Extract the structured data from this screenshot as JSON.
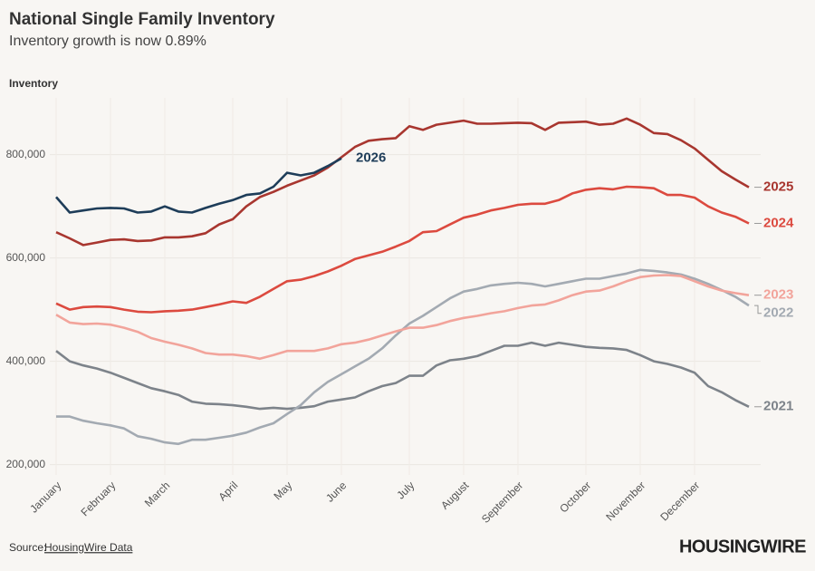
{
  "chart_data": {
    "type": "line",
    "title": "National Single Family Inventory",
    "subtitle": "Inventory growth is now 0.89%",
    "y_label": "Inventory",
    "source": "Source:",
    "source_link": "HousingWire Data",
    "brand": "HOUSINGWIRE",
    "grid": true,
    "categories": [
      "January",
      null,
      null,
      null,
      "February",
      null,
      null,
      null,
      "March",
      null,
      null,
      null,
      null,
      "April",
      null,
      null,
      null,
      "May",
      null,
      null,
      null,
      "June",
      null,
      null,
      null,
      null,
      "July",
      null,
      null,
      null,
      "August",
      null,
      null,
      null,
      "September",
      null,
      null,
      null,
      null,
      "October",
      null,
      null,
      null,
      "November",
      null,
      null,
      null,
      "December",
      null,
      null,
      null,
      null
    ],
    "ylim": [
      180000,
      910000
    ],
    "yticks": [
      {
        "value": 200000,
        "label": "200,000"
      },
      {
        "value": 400000,
        "label": "400,000"
      },
      {
        "value": 600000,
        "label": "600,000"
      },
      {
        "value": 800000,
        "label": "800,000"
      }
    ],
    "series": [
      {
        "name": "2021",
        "color": "#7d838a",
        "values": [
          420000,
          400000,
          392000,
          386000,
          378000,
          368000,
          358000,
          348000,
          342000,
          335000,
          322000,
          318000,
          317000,
          315000,
          312000,
          308000,
          310000,
          308000,
          310000,
          313000,
          322000,
          326000,
          330000,
          342000,
          352000,
          358000,
          372000,
          372000,
          392000,
          402000,
          405000,
          410000,
          420000,
          430000,
          430000,
          436000,
          430000,
          436000,
          432000,
          428000,
          426000,
          425000,
          422000,
          412000,
          400000,
          395000,
          388000,
          378000,
          352000,
          340000,
          325000,
          312000
        ]
      },
      {
        "name": "2022",
        "color": "#a3aab2",
        "values": [
          293000,
          293000,
          285000,
          280000,
          276000,
          270000,
          255000,
          250000,
          243000,
          240000,
          248000,
          248000,
          252000,
          256000,
          262000,
          272000,
          280000,
          298000,
          315000,
          340000,
          360000,
          375000,
          390000,
          405000,
          425000,
          450000,
          473000,
          488000,
          505000,
          522000,
          535000,
          540000,
          547000,
          550000,
          552000,
          550000,
          545000,
          550000,
          555000,
          560000,
          560000,
          565000,
          570000,
          577000,
          575000,
          572000,
          568000,
          560000,
          550000,
          538000,
          525000,
          508000
        ]
      },
      {
        "name": "2023",
        "color": "#f2a49b",
        "values": [
          490000,
          475000,
          472000,
          473000,
          471000,
          465000,
          457000,
          445000,
          438000,
          432000,
          425000,
          416000,
          413000,
          413000,
          410000,
          405000,
          412000,
          420000,
          420000,
          420000,
          425000,
          433000,
          436000,
          442000,
          450000,
          458000,
          465000,
          465000,
          470000,
          478000,
          484000,
          488000,
          493000,
          497000,
          503000,
          508000,
          510000,
          518000,
          528000,
          535000,
          537000,
          545000,
          555000,
          563000,
          566000,
          567000,
          565000,
          555000,
          545000,
          537000,
          532000,
          528000
        ]
      },
      {
        "name": "2024",
        "color": "#dc4a3f",
        "values": [
          512000,
          500000,
          505000,
          506000,
          505000,
          500000,
          496000,
          495000,
          497000,
          498000,
          500000,
          505000,
          510000,
          516000,
          513000,
          525000,
          540000,
          555000,
          558000,
          565000,
          574000,
          585000,
          598000,
          605000,
          612000,
          622000,
          633000,
          650000,
          652000,
          665000,
          678000,
          684000,
          692000,
          697000,
          703000,
          705000,
          705000,
          712000,
          725000,
          732000,
          735000,
          733000,
          738000,
          737000,
          735000,
          722000,
          722000,
          717000,
          700000,
          688000,
          680000,
          667000
        ]
      },
      {
        "name": "2025",
        "color": "#a8362f",
        "values": [
          650000,
          638000,
          625000,
          630000,
          635000,
          636000,
          633000,
          634000,
          640000,
          640000,
          642000,
          648000,
          665000,
          675000,
          700000,
          718000,
          728000,
          740000,
          750000,
          760000,
          775000,
          795000,
          815000,
          827000,
          830000,
          832000,
          855000,
          848000,
          858000,
          862000,
          866000,
          860000,
          860000,
          861000,
          862000,
          861000,
          848000,
          862000,
          863000,
          864000,
          858000,
          860000,
          870000,
          858000,
          842000,
          840000,
          828000,
          812000,
          790000,
          768000,
          752000,
          737000
        ]
      },
      {
        "name": "2026",
        "color": "#1e3d59",
        "values": [
          718000,
          688000,
          692000,
          696000,
          697000,
          696000,
          688000,
          690000,
          700000,
          690000,
          688000,
          697000,
          705000,
          712000,
          722000,
          725000,
          738000,
          765000,
          760000,
          765000,
          778000,
          793000,
          null,
          null,
          null,
          null,
          null,
          null,
          null,
          null,
          null,
          null,
          null,
          null,
          null,
          null,
          null,
          null,
          null,
          null,
          null,
          null,
          null,
          null,
          null,
          null,
          null,
          null,
          null,
          null,
          null,
          null
        ]
      }
    ]
  }
}
